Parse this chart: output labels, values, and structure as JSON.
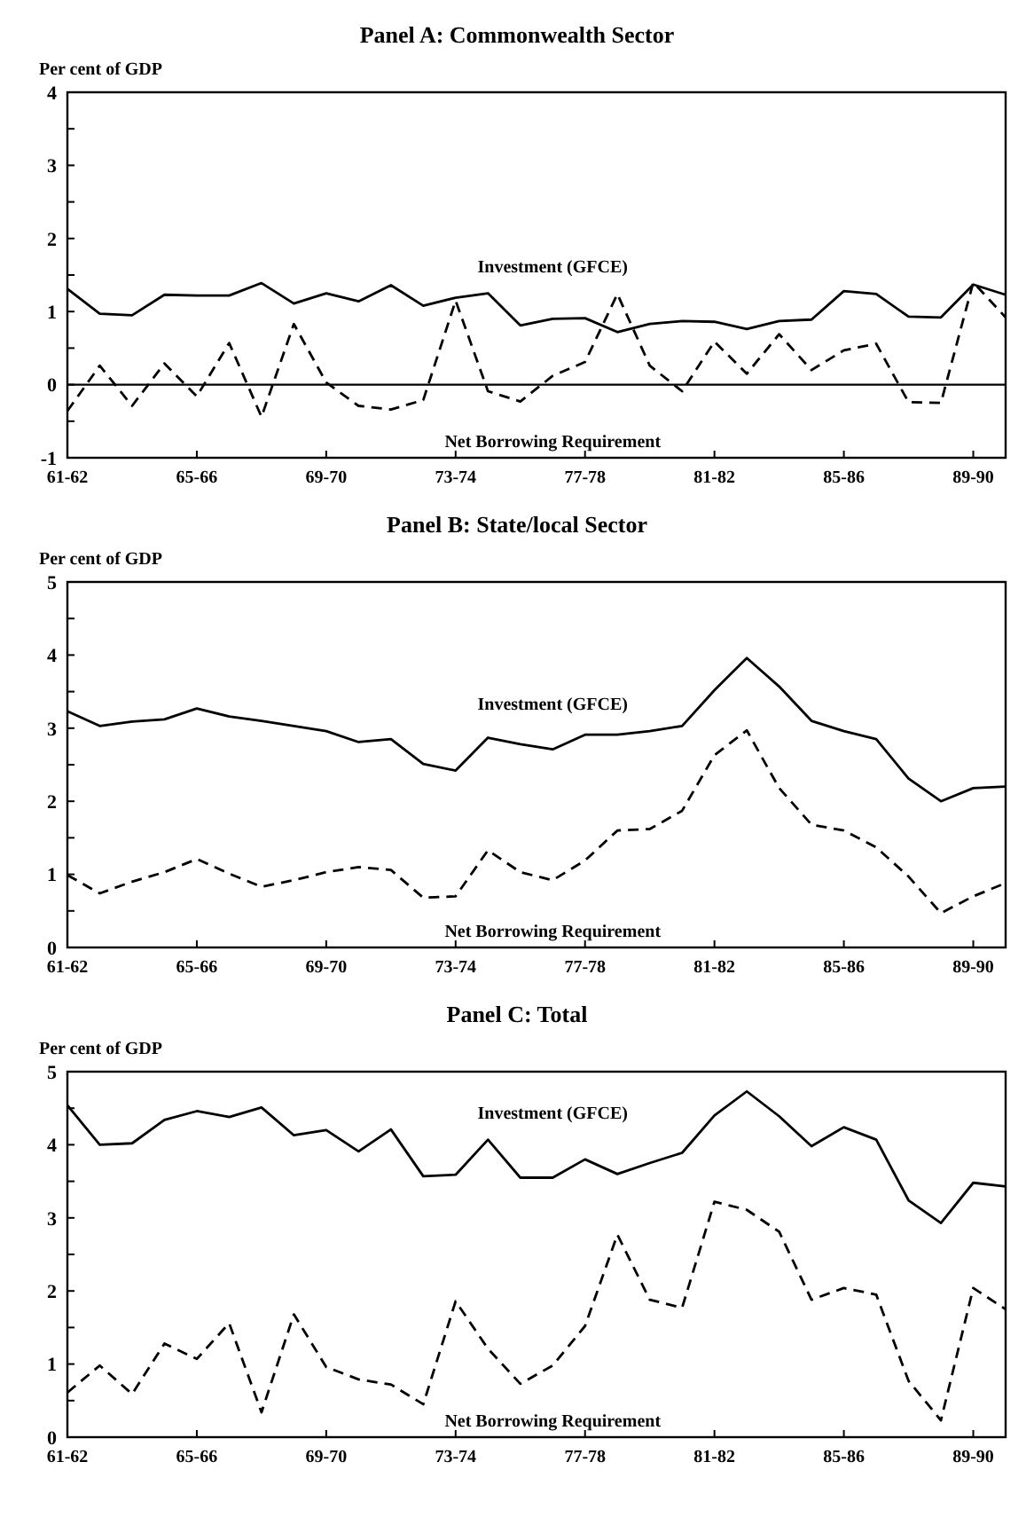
{
  "chart_data": [
    {
      "type": "line",
      "title": "Panel A:  Commonwealth Sector",
      "ylabel": "Per cent of GDP",
      "categories": [
        "61-62",
        null,
        null,
        null,
        "65-66",
        null,
        null,
        null,
        "69-70",
        null,
        null,
        null,
        "73-74",
        null,
        null,
        null,
        "77-78",
        null,
        null,
        null,
        "81-82",
        null,
        null,
        null,
        "85-86",
        null,
        null,
        null,
        "89-90",
        null
      ],
      "ylim": [
        -1,
        4
      ],
      "yticks": [
        -1,
        {
          "value": -0.5,
          "label": null
        },
        0,
        {
          "value": 0.5,
          "label": null
        },
        1,
        {
          "value": 1.5,
          "label": null
        },
        2,
        {
          "value": 2.5,
          "label": null
        },
        3,
        {
          "value": 3.5,
          "label": null
        },
        4
      ],
      "grid": false,
      "ref_lines": [
        {
          "axis": "y",
          "value": 0
        }
      ],
      "series": [
        {
          "name": "Investment (GFCE)",
          "color": "#000000",
          "line_style": "solid",
          "values": [
            1.31,
            0.97,
            0.95,
            1.23,
            1.22,
            1.22,
            1.39,
            1.11,
            1.25,
            1.14,
            1.36,
            1.08,
            1.19,
            1.25,
            0.81,
            0.9,
            0.91,
            0.72,
            0.83,
            0.87,
            0.86,
            0.76,
            0.87,
            0.89,
            1.28,
            1.24,
            0.93,
            0.92,
            1.37,
            1.23
          ]
        },
        {
          "name": "Net Borrowing Requirement",
          "color": "#000000",
          "line_style": "dashed",
          "values": [
            -0.36,
            0.26,
            -0.29,
            0.29,
            -0.16,
            0.57,
            -0.44,
            0.83,
            0.03,
            -0.29,
            -0.34,
            -0.21,
            1.15,
            -0.09,
            -0.23,
            0.12,
            0.31,
            1.24,
            0.26,
            -0.09,
            0.59,
            0.15,
            0.69,
            0.2,
            0.47,
            0.56,
            -0.24,
            -0.25,
            1.4,
            0.92
          ]
        }
      ]
    },
    {
      "type": "line",
      "title": "Panel B:  State/local Sector",
      "ylabel": "Per cent of GDP",
      "categories": [
        "61-62",
        null,
        null,
        null,
        "65-66",
        null,
        null,
        null,
        "69-70",
        null,
        null,
        null,
        "73-74",
        null,
        null,
        null,
        "77-78",
        null,
        null,
        null,
        "81-82",
        null,
        null,
        null,
        "85-86",
        null,
        null,
        null,
        "89-90",
        null
      ],
      "ylim": [
        0,
        5
      ],
      "yticks": [
        0,
        {
          "value": 0.5,
          "label": null
        },
        1,
        {
          "value": 1.5,
          "label": null
        },
        2,
        {
          "value": 2.5,
          "label": null
        },
        3,
        {
          "value": 3.5,
          "label": null
        },
        4,
        {
          "value": 4.5,
          "label": null
        },
        5
      ],
      "grid": false,
      "series": [
        {
          "name": "Investment (GFCE)",
          "color": "#000000",
          "line_style": "solid",
          "values": [
            3.23,
            3.03,
            3.09,
            3.12,
            3.27,
            3.16,
            3.1,
            3.03,
            2.96,
            2.81,
            2.85,
            2.51,
            2.42,
            2.87,
            2.78,
            2.71,
            2.91,
            2.91,
            2.96,
            3.03,
            3.52,
            3.96,
            3.57,
            3.1,
            2.96,
            2.85,
            2.31,
            2.0,
            2.18,
            2.2
          ]
        },
        {
          "name": "Net Borrowing Requirement",
          "color": "#000000",
          "line_style": "dashed",
          "values": [
            0.99,
            0.74,
            0.9,
            1.03,
            1.21,
            1.01,
            0.83,
            0.92,
            1.03,
            1.1,
            1.06,
            0.68,
            0.7,
            1.33,
            1.03,
            0.92,
            1.19,
            1.6,
            1.62,
            1.87,
            2.63,
            2.97,
            2.18,
            1.68,
            1.6,
            1.37,
            0.97,
            0.47,
            0.7,
            0.88
          ]
        }
      ]
    },
    {
      "type": "line",
      "title": "Panel C:  Total",
      "ylabel": "Per cent of GDP",
      "categories": [
        "61-62",
        null,
        null,
        null,
        "65-66",
        null,
        null,
        null,
        "69-70",
        null,
        null,
        null,
        "73-74",
        null,
        null,
        null,
        "77-78",
        null,
        null,
        null,
        "81-82",
        null,
        null,
        null,
        "85-86",
        null,
        null,
        null,
        "89-90",
        null
      ],
      "ylim": [
        0,
        5
      ],
      "yticks": [
        0,
        {
          "value": 0.5,
          "label": null
        },
        1,
        {
          "value": 1.5,
          "label": null
        },
        2,
        {
          "value": 2.5,
          "label": null
        },
        3,
        {
          "value": 3.5,
          "label": null
        },
        4,
        {
          "value": 4.5,
          "label": null
        },
        5
      ],
      "grid": false,
      "series": [
        {
          "name": "Investment (GFCE)",
          "color": "#000000",
          "line_style": "solid",
          "values": [
            4.54,
            4.0,
            4.02,
            4.34,
            4.46,
            4.38,
            4.51,
            4.13,
            4.2,
            3.91,
            4.21,
            3.57,
            3.59,
            4.07,
            3.55,
            3.55,
            3.8,
            3.6,
            3.75,
            3.89,
            4.4,
            4.73,
            4.39,
            3.98,
            4.24,
            4.07,
            3.24,
            2.93,
            3.48,
            3.43
          ]
        },
        {
          "name": "Net Borrowing Requirement",
          "color": "#000000",
          "line_style": "dashed",
          "values": [
            0.61,
            0.98,
            0.59,
            1.28,
            1.07,
            1.56,
            0.34,
            1.68,
            0.96,
            0.79,
            0.72,
            0.45,
            1.86,
            1.21,
            0.73,
            0.98,
            1.52,
            2.77,
            1.88,
            1.77,
            3.22,
            3.11,
            2.81,
            1.88,
            2.04,
            1.95,
            0.77,
            0.23,
            2.04,
            1.75
          ]
        }
      ]
    }
  ]
}
